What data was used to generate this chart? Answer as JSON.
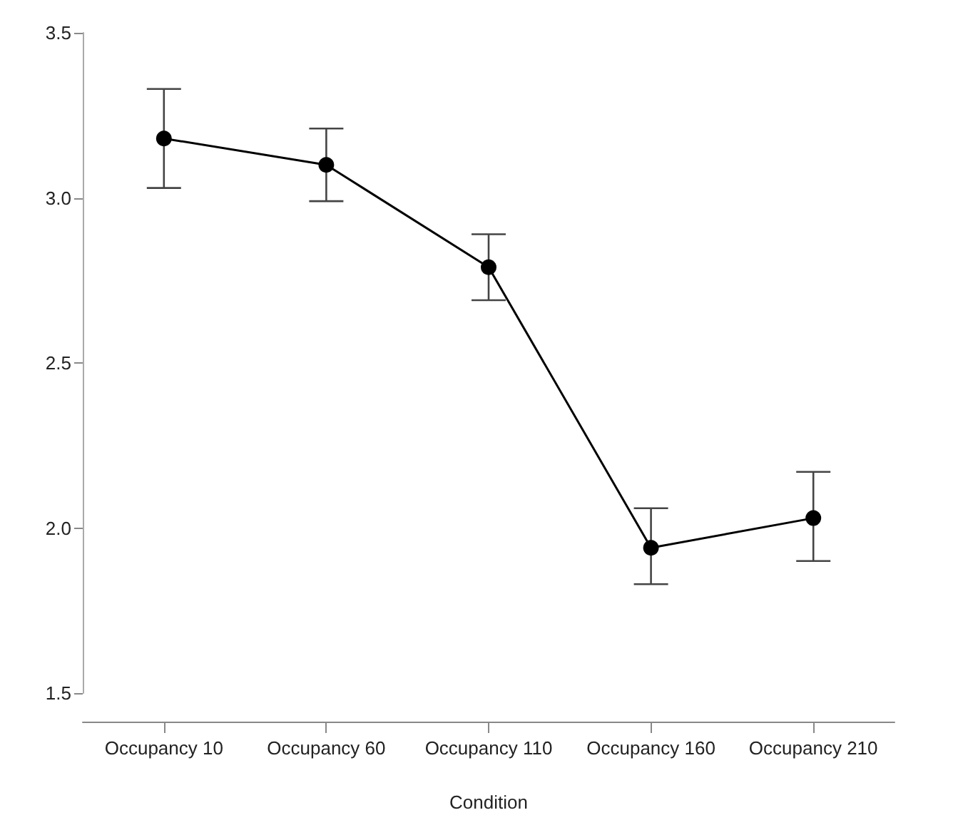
{
  "chart_data": {
    "type": "line",
    "xlabel": "Condition",
    "categories": [
      "Occupancy 10",
      "Occupancy 60",
      "Occupancy 110",
      "Occupancy 160",
      "Occupancy 210"
    ],
    "values": [
      3.18,
      3.1,
      2.79,
      1.94,
      2.03
    ],
    "errors": [
      [
        3.03,
        3.33
      ],
      [
        2.99,
        3.21
      ],
      [
        2.69,
        2.89
      ],
      [
        1.83,
        2.06
      ],
      [
        1.9,
        2.17
      ]
    ],
    "color": "#000000",
    "ylim": [
      1.5,
      3.5
    ],
    "yticks": [
      {
        "value": 1.5,
        "label": "1.5"
      },
      {
        "value": 2,
        "label": "2.0"
      },
      {
        "value": 2.5,
        "label": "2.5"
      },
      {
        "value": 3,
        "label": "3.0"
      },
      {
        "value": 3.5,
        "label": "3.5"
      }
    ],
    "grid": false,
    "marker": "circle",
    "line_style": "solid"
  }
}
